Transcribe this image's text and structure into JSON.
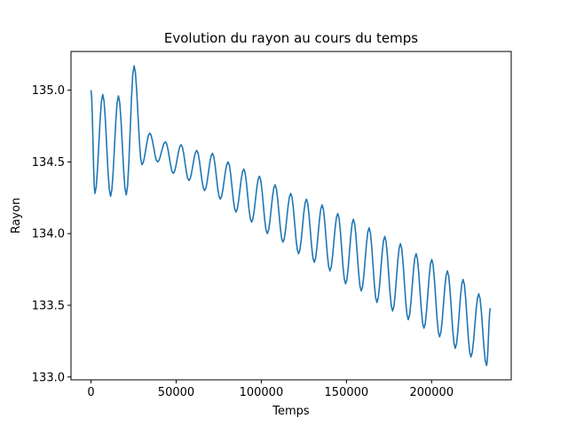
{
  "chart_data": {
    "type": "line",
    "title": "Evolution du rayon au cours du temps",
    "xlabel": "Temps",
    "ylabel": "Rayon",
    "xlim": [
      -11750,
      246750
    ],
    "ylim": [
      132.98,
      135.27
    ],
    "xticks": [
      0,
      50000,
      100000,
      150000,
      200000
    ],
    "xtick_labels": [
      "0",
      "50000",
      "100000",
      "150000",
      "200000"
    ],
    "yticks": [
      133.0,
      133.5,
      134.0,
      134.5,
      135.0
    ],
    "ytick_labels": [
      "133.0",
      "133.5",
      "134.0",
      "134.5",
      "135.0"
    ],
    "grid": false,
    "legend": "none",
    "series": [
      {
        "color": "#1f77b4",
        "x": [
          0,
          2300,
          6900,
          11500,
          16100,
          20700,
          25300,
          29900,
          34500,
          39100,
          43700,
          48300,
          52900,
          57500,
          62100,
          66700,
          71300,
          75900,
          80500,
          85100,
          89700,
          94300,
          98900,
          103500,
          108100,
          112700,
          117300,
          121900,
          126500,
          131100,
          135700,
          140300,
          144900,
          149500,
          154100,
          158700,
          163300,
          167900,
          172500,
          177100,
          181700,
          186300,
          190900,
          195500,
          200100,
          204700,
          209300,
          213900,
          218500,
          223100,
          227700,
          232300,
          234500
        ],
        "y": [
          135.0,
          134.28,
          134.97,
          134.26,
          134.96,
          134.27,
          135.17,
          134.48,
          134.7,
          134.5,
          134.64,
          134.42,
          134.62,
          134.37,
          134.58,
          134.3,
          134.56,
          134.24,
          134.5,
          134.15,
          134.45,
          134.08,
          134.4,
          134.0,
          134.34,
          133.94,
          134.28,
          133.86,
          134.24,
          133.8,
          134.2,
          133.74,
          134.14,
          133.65,
          134.1,
          133.6,
          134.04,
          133.52,
          133.98,
          133.46,
          133.93,
          133.4,
          133.86,
          133.34,
          133.82,
          133.28,
          133.74,
          133.2,
          133.68,
          133.14,
          133.58,
          133.08,
          133.48
        ]
      }
    ]
  }
}
